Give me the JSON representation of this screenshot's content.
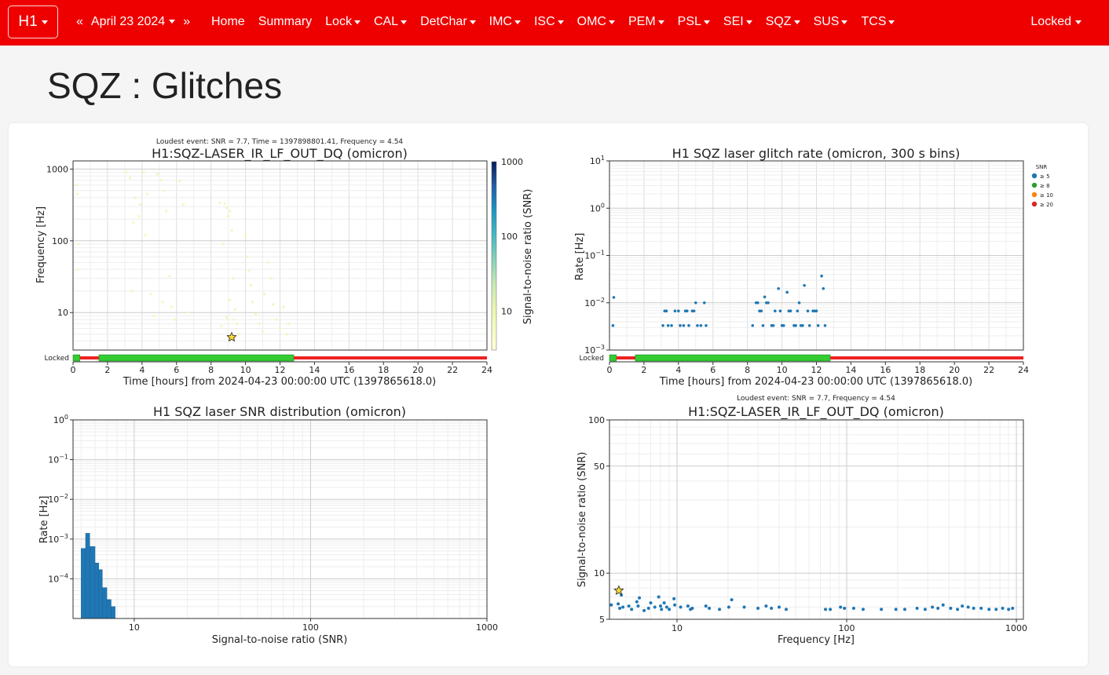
{
  "navbar": {
    "ifo": "H1",
    "prev": "«",
    "date": "April 23 2024",
    "next": "»",
    "items": [
      {
        "label": "Home",
        "menu": false
      },
      {
        "label": "Summary",
        "menu": false
      },
      {
        "label": "Lock",
        "menu": true
      },
      {
        "label": "CAL",
        "menu": true
      },
      {
        "label": "DetChar",
        "menu": true
      },
      {
        "label": "IMC",
        "menu": true
      },
      {
        "label": "ISC",
        "menu": true
      },
      {
        "label": "OMC",
        "menu": true
      },
      {
        "label": "PEM",
        "menu": true
      },
      {
        "label": "PSL",
        "menu": true
      },
      {
        "label": "SEI",
        "menu": true
      },
      {
        "label": "SQZ",
        "menu": true
      },
      {
        "label": "SUS",
        "menu": true
      },
      {
        "label": "TCS",
        "menu": true
      }
    ],
    "state": "Locked",
    "color": "#ee0000"
  },
  "page": {
    "title": "SQZ : Glitches"
  },
  "plots": {
    "p1": {
      "loudest": "Loudest event: SNR = 7.7, Time = 1397898801.41, Frequency = 4.54",
      "title": "H1:SQZ-LASER_IR_LF_OUT_DQ (omicron)",
      "ylabel": "Frequency [Hz]",
      "xlabel": "Time [hours] from 2024-04-23 00:00:00 UTC (1397865618.0)",
      "cbar_label": "Signal-to-noise ratio (SNR)",
      "state_label": "Locked"
    },
    "p2": {
      "title": "H1 SQZ laser glitch rate (omicron, 300 s bins)",
      "ylabel": "Rate [Hz]",
      "xlabel": "Time [hours] from 2024-04-23 00:00:00 UTC (1397865618.0)",
      "state_label": "Locked",
      "legend_title": "SNR",
      "legend": [
        "≥ 5",
        "≥ 8",
        "≥ 10",
        "≥ 20"
      ]
    },
    "p3": {
      "title": "H1 SQZ laser SNR distribution (omicron)",
      "ylabel": "Rate [Hz]",
      "xlabel": "Signal-to-noise ratio (SNR)"
    },
    "p4": {
      "loudest": "Loudest event: SNR = 7.7, Frequency = 4.54",
      "title": "H1:SQZ-LASER_IR_LF_OUT_DQ (omicron)",
      "ylabel": "Signal-to-noise ratio (SNR)",
      "xlabel": "Frequency [Hz]"
    }
  },
  "chart_data": [
    {
      "type": "scatter",
      "title": "H1:SQZ-LASER_IR_LF_OUT_DQ (omicron)",
      "xlabel": "Time [hours] from 2024-04-23 00:00:00 UTC (1397865618.0)",
      "ylabel": "Frequency [Hz]",
      "xlim": [
        0,
        24
      ],
      "ylim": [
        3,
        1300
      ],
      "yscale": "log",
      "xticks": [
        "0",
        "2",
        "4",
        "6",
        "8",
        "10",
        "12",
        "14",
        "16",
        "18",
        "20",
        "22",
        "24"
      ],
      "yticks": [
        "10",
        "100",
        "1000"
      ],
      "colorbar": {
        "label": "Signal-to-noise ratio (SNR)",
        "ticks": [
          "10",
          "100",
          "1000"
        ],
        "range": [
          3,
          1000
        ]
      },
      "loudest": {
        "x": 9.2,
        "y": 4.54,
        "snr": 7.7
      },
      "points": [
        [
          0.2,
          600
        ],
        [
          0.25,
          450
        ],
        [
          0.3,
          90
        ],
        [
          0.25,
          40
        ],
        [
          3.1,
          900
        ],
        [
          3.3,
          750
        ],
        [
          3.6,
          400
        ],
        [
          3.8,
          220
        ],
        [
          3.5,
          180
        ],
        [
          3.4,
          20
        ],
        [
          3.9,
          320
        ],
        [
          4.1,
          900
        ],
        [
          4.3,
          450
        ],
        [
          4.2,
          120
        ],
        [
          4.5,
          18
        ],
        [
          4.7,
          9
        ],
        [
          4.9,
          850
        ],
        [
          5.1,
          700
        ],
        [
          5.3,
          500
        ],
        [
          5.4,
          260
        ],
        [
          5.6,
          32
        ],
        [
          5.2,
          14
        ],
        [
          5.7,
          12
        ],
        [
          5.9,
          8
        ],
        [
          6.2,
          680
        ],
        [
          6.4,
          320
        ],
        [
          6.6,
          10
        ],
        [
          8.5,
          340
        ],
        [
          8.7,
          90
        ],
        [
          8.9,
          8.5
        ],
        [
          8.6,
          6.5
        ],
        [
          8.8,
          330
        ],
        [
          8.9,
          290
        ],
        [
          9.1,
          260
        ],
        [
          9.0,
          220
        ],
        [
          9.2,
          140
        ],
        [
          9.3,
          30
        ],
        [
          9.1,
          15
        ],
        [
          9.4,
          11
        ],
        [
          9.3,
          8
        ],
        [
          9.5,
          7
        ],
        [
          9.6,
          5
        ],
        [
          10.0,
          120
        ],
        [
          10.1,
          60
        ],
        [
          10.2,
          38
        ],
        [
          10.3,
          24
        ],
        [
          10.4,
          14
        ],
        [
          10.6,
          9.5
        ],
        [
          10.8,
          7
        ],
        [
          11.0,
          5.5
        ],
        [
          11.1,
          18
        ],
        [
          11.3,
          50
        ],
        [
          11.5,
          30
        ],
        [
          11.6,
          13
        ],
        [
          11.8,
          8
        ],
        [
          12.0,
          6
        ],
        [
          12.2,
          12
        ],
        [
          12.4,
          5
        ],
        [
          12.5,
          7
        ]
      ],
      "state_segments": [
        {
          "state": "Locked",
          "start": 0,
          "end": 0.4
        },
        {
          "state": "Unlocked",
          "start": 0.4,
          "end": 1.5
        },
        {
          "state": "Locked",
          "start": 1.5,
          "end": 12.8
        },
        {
          "state": "Unlocked",
          "start": 12.8,
          "end": 24
        }
      ]
    },
    {
      "type": "scatter",
      "title": "H1 SQZ laser glitch rate (omicron, 300 s bins)",
      "xlabel": "Time [hours] from 2024-04-23 00:00:00 UTC (1397865618.0)",
      "ylabel": "Rate [Hz]",
      "xlim": [
        0,
        24
      ],
      "ylim": [
        0.001,
        10
      ],
      "yscale": "log",
      "xticks": [
        "0",
        "2",
        "4",
        "6",
        "8",
        "10",
        "12",
        "14",
        "16",
        "18",
        "20",
        "22",
        "24"
      ],
      "legend": [
        "≥ 5",
        "≥ 8",
        "≥ 10",
        "≥ 20"
      ],
      "legend_placement": "outside-right",
      "series": [
        {
          "name": "≥ 5",
          "color": "#1f77b4",
          "points": [
            [
              0.2,
              0.0033
            ],
            [
              0.25,
              0.013
            ],
            [
              3.1,
              0.0033
            ],
            [
              3.2,
              0.0067
            ],
            [
              3.3,
              0.0067
            ],
            [
              3.4,
              0.0033
            ],
            [
              3.6,
              0.0033
            ],
            [
              3.8,
              0.0067
            ],
            [
              4.0,
              0.0067
            ],
            [
              4.1,
              0.0033
            ],
            [
              4.3,
              0.0033
            ],
            [
              4.4,
              0.0067
            ],
            [
              4.5,
              0.0067
            ],
            [
              4.6,
              0.0033
            ],
            [
              4.8,
              0.0067
            ],
            [
              4.9,
              0.0067
            ],
            [
              5.0,
              0.01
            ],
            [
              5.1,
              0.0033
            ],
            [
              5.3,
              0.0033
            ],
            [
              5.5,
              0.01
            ],
            [
              5.6,
              0.0033
            ],
            [
              8.3,
              0.0033
            ],
            [
              8.5,
              0.01
            ],
            [
              8.6,
              0.01
            ],
            [
              8.7,
              0.0067
            ],
            [
              8.8,
              0.0067
            ],
            [
              8.9,
              0.0033
            ],
            [
              9.0,
              0.0133
            ],
            [
              9.1,
              0.01
            ],
            [
              9.2,
              0.01
            ],
            [
              9.4,
              0.0033
            ],
            [
              9.5,
              0.0033
            ],
            [
              9.6,
              0.0067
            ],
            [
              9.8,
              0.02
            ],
            [
              9.9,
              0.0067
            ],
            [
              10.0,
              0.0033
            ],
            [
              10.1,
              0.0033
            ],
            [
              10.3,
              0.0167
            ],
            [
              10.4,
              0.0067
            ],
            [
              10.5,
              0.0067
            ],
            [
              10.7,
              0.0033
            ],
            [
              10.8,
              0.0033
            ],
            [
              10.9,
              0.0067
            ],
            [
              11.0,
              0.01
            ],
            [
              11.1,
              0.0033
            ],
            [
              11.2,
              0.0033
            ],
            [
              11.3,
              0.0233
            ],
            [
              11.5,
              0.0067
            ],
            [
              11.6,
              0.0033
            ],
            [
              11.8,
              0.0067
            ],
            [
              11.9,
              0.0067
            ],
            [
              12.0,
              0.0067
            ],
            [
              12.1,
              0.0033
            ],
            [
              12.3,
              0.0367
            ],
            [
              12.4,
              0.02
            ],
            [
              12.5,
              0.0033
            ]
          ]
        }
      ],
      "state_segments": [
        {
          "state": "Locked",
          "start": 0,
          "end": 0.4
        },
        {
          "state": "Unlocked",
          "start": 0.4,
          "end": 1.5
        },
        {
          "state": "Locked",
          "start": 1.5,
          "end": 12.8
        },
        {
          "state": "Unlocked",
          "start": 12.8,
          "end": 24
        }
      ]
    },
    {
      "type": "bar",
      "title": "H1 SQZ laser SNR distribution (omicron)",
      "xlabel": "Signal-to-noise ratio (SNR)",
      "ylabel": "Rate [Hz]",
      "xlim": [
        4.5,
        1000
      ],
      "xscale": "log",
      "ylim": [
        1e-05,
        1
      ],
      "yscale": "log",
      "xticks": [
        "10",
        "100",
        "1000"
      ],
      "bins": [
        [
          5.0,
          5.3,
          0.00058
        ],
        [
          5.3,
          5.6,
          0.0014
        ],
        [
          5.6,
          6.0,
          0.00065
        ],
        [
          6.0,
          6.3,
          0.00025
        ],
        [
          6.3,
          6.6,
          0.00017
        ],
        [
          6.6,
          7.0,
          6e-05
        ],
        [
          7.0,
          7.4,
          3e-05
        ],
        [
          7.4,
          7.8,
          2e-05
        ]
      ]
    },
    {
      "type": "scatter",
      "title": "H1:SQZ-LASER_IR_LF_OUT_DQ (omicron)",
      "xlabel": "Frequency [Hz]",
      "ylabel": "Signal-to-noise ratio (SNR)",
      "xlim": [
        4,
        1100
      ],
      "xscale": "log",
      "ylim": [
        5,
        100
      ],
      "yscale": "log",
      "xticks": [
        "10",
        "100",
        "1000"
      ],
      "yticks": [
        "5",
        "10",
        "50",
        "100"
      ],
      "loudest": {
        "x": 4.54,
        "y": 7.7,
        "snr": 7.7
      },
      "points": [
        [
          4.1,
          6.2
        ],
        [
          4.5,
          6.3
        ],
        [
          4.6,
          5.9
        ],
        [
          4.7,
          7.2
        ],
        [
          4.8,
          6.0
        ],
        [
          5.2,
          6.1
        ],
        [
          5.4,
          5.8
        ],
        [
          5.8,
          6.5
        ],
        [
          5.9,
          6.1
        ],
        [
          6.0,
          6.9
        ],
        [
          6.4,
          5.7
        ],
        [
          6.8,
          5.9
        ],
        [
          7.0,
          6.4
        ],
        [
          7.4,
          6.0
        ],
        [
          7.8,
          7.0
        ],
        [
          8.0,
          6.1
        ],
        [
          8.1,
          5.8
        ],
        [
          8.4,
          6.4
        ],
        [
          8.7,
          6.0
        ],
        [
          9.0,
          5.8
        ],
        [
          9.6,
          6.8
        ],
        [
          9.7,
          6.2
        ],
        [
          10.5,
          6.0
        ],
        [
          11.6,
          6.1
        ],
        [
          12.0,
          5.8
        ],
        [
          12.3,
          5.9
        ],
        [
          14.8,
          6.1
        ],
        [
          15.5,
          5.9
        ],
        [
          17.8,
          5.8
        ],
        [
          20.2,
          6.0
        ],
        [
          21.0,
          6.7
        ],
        [
          24.9,
          6.0
        ],
        [
          30.0,
          5.9
        ],
        [
          33.5,
          6.1
        ],
        [
          36.0,
          5.9
        ],
        [
          40.0,
          6.0
        ],
        [
          44.0,
          5.8
        ],
        [
          75.0,
          5.8
        ],
        [
          80.0,
          5.8
        ],
        [
          92.0,
          6.0
        ],
        [
          97.0,
          5.9
        ],
        [
          110.0,
          5.9
        ],
        [
          125.0,
          5.8
        ],
        [
          160.0,
          5.8
        ],
        [
          195.0,
          5.8
        ],
        [
          220.0,
          5.8
        ],
        [
          260.0,
          5.9
        ],
        [
          290.0,
          5.8
        ],
        [
          320.0,
          6.0
        ],
        [
          345.0,
          5.9
        ],
        [
          370.0,
          6.2
        ],
        [
          410.0,
          5.9
        ],
        [
          450.0,
          5.8
        ],
        [
          480.0,
          6.1
        ],
        [
          520.0,
          6.0
        ],
        [
          560.0,
          5.9
        ],
        [
          620.0,
          5.9
        ],
        [
          690.0,
          5.8
        ],
        [
          760.0,
          5.8
        ],
        [
          830.0,
          5.9
        ],
        [
          900.0,
          5.8
        ],
        [
          950.0,
          5.9
        ]
      ]
    }
  ]
}
